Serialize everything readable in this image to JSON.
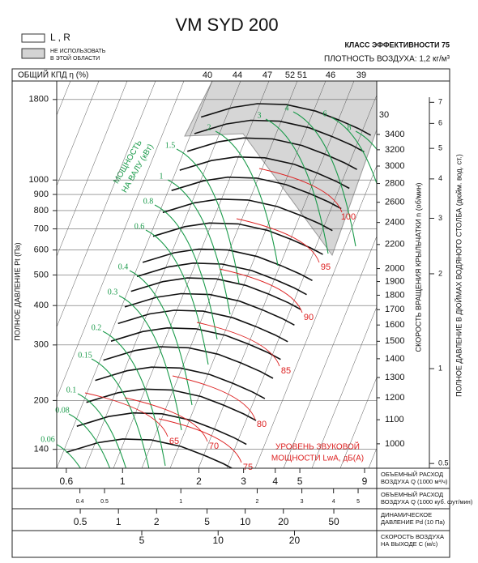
{
  "title": "VM  SYD 200",
  "legend": {
    "lr": "L , R",
    "shaded": [
      "НЕ ИСПОЛЬЗОВАТЬ",
      "В ЭТОЙ ОБЛАСТИ"
    ]
  },
  "efficiency_class": "КЛАСС ЭФФЕКТИВНОСТИ 75",
  "air_density": "ПЛОТНОСТЬ ВОЗДУХА: 1,2 кг/м³",
  "chart_data": {
    "type": "fan-curve",
    "log_y": true,
    "grid": true,
    "y_label": "ПОЛНОЕ ДАВЛЕНИЕ Pt (Па)",
    "ylim": [
      122,
      2060
    ],
    "yticks": [
      140,
      200,
      300,
      400,
      500,
      600,
      700,
      800,
      900,
      1000,
      1800
    ],
    "efficiency_label": "ОБЩИЙ КПД η (%)",
    "efficiency": [
      40,
      44,
      47,
      52,
      51,
      46,
      39,
      30
    ],
    "rpm_label": "СКОРОСТЬ ВРАЩЕНИЯ КРЫЛЬЧАТКИ n (об/мин)",
    "rpm_lim": [
      908,
      4200
    ],
    "rpm_ticks": [
      1000,
      1100,
      1200,
      1300,
      1400,
      1500,
      1600,
      1700,
      1800,
      1900,
      2000,
      2200,
      2400,
      2600,
      2800,
      3000,
      3200,
      3400
    ],
    "inch_label": "ПОЛНОЕ ДАВЛЕНИЕ В ДЮЙМАХ ВОДЯНОГО СТОЛБА (дюйм. вод. ст.)",
    "inch_lim": [
      0.483,
      8.18
    ],
    "inch_ticks": [
      0.5,
      1,
      2,
      3,
      4,
      5,
      6,
      7
    ],
    "power_label": [
      "МОЩНОСТЬ",
      "НА ВАЛУ (кВт)"
    ],
    "power": [
      2,
      3,
      4,
      6,
      8,
      1.5,
      1,
      0.8,
      0.6,
      0.4,
      0.3,
      0.2,
      0.15,
      0.1,
      0.08,
      0.06
    ],
    "noise_label": [
      "УРОВЕНЬ ЗВУКОВОЙ",
      "МОЩНОСТИ LwA, дБ(А)"
    ],
    "noise": [
      65,
      70,
      75,
      80,
      85,
      90,
      95,
      100
    ],
    "x_axes": [
      {
        "label": [
          "ОБЪЕМНЫЙ РАСХОД",
          "ВОЗДУХА Q (1000 м³/ч)"
        ],
        "xlim": [
          0.55,
          10.05
        ],
        "xticks": [
          0.6,
          1,
          2,
          3,
          4,
          5,
          9
        ]
      },
      {
        "label": [
          "ОБЪЕМНЫЙ РАСХОД",
          "ВОЗДУХА Q (1000 куб. фут/мин)"
        ],
        "xlim": [
          0.324,
          5.92
        ],
        "xticks": [
          0.4,
          0.5,
          1,
          2,
          3,
          4,
          5
        ]
      },
      {
        "label": [
          "ДИНАМИЧЕСКОЕ",
          "ДАВЛЕНИЕ Pd (10 Па)"
        ],
        "xlim": [
          0.326,
          109
        ],
        "xticks": [
          0.5,
          1,
          2,
          5,
          10,
          20,
          50
        ]
      },
      {
        "label": [
          "СКОРОСТЬ ВОЗДУХА",
          "НА ВЫХОДЕ С (м/с)"
        ],
        "xlim": [
          2.31,
          42.2
        ],
        "xticks": [
          5,
          10,
          20
        ]
      }
    ]
  }
}
